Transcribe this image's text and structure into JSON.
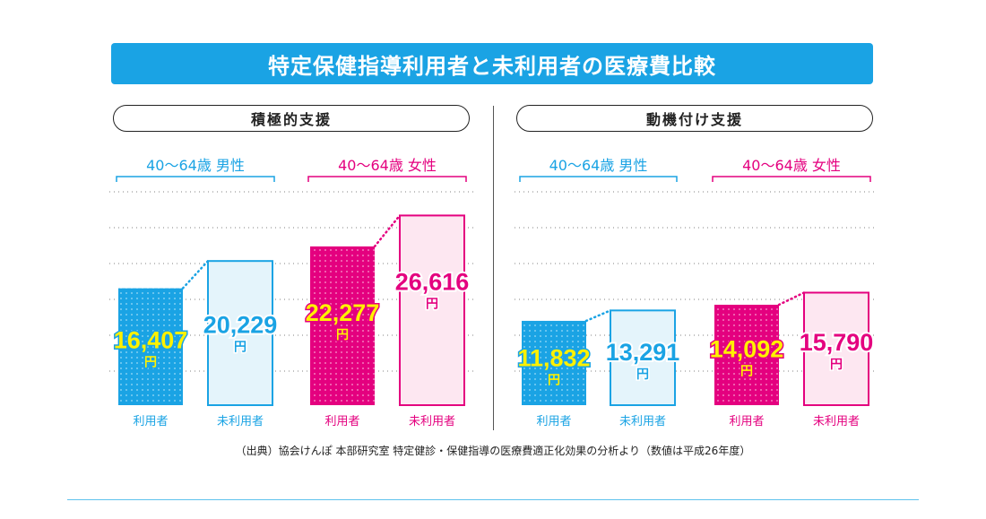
{
  "title": "特定保健指導利用者と未利用者の医療費比較",
  "source": "（出典）協会けんぽ 本部研究室 特定健診・保健指導の医療費適正化効果の分析より（数値は平成26年度）",
  "colors": {
    "banner": "#1aa3e4",
    "male": "#1aa3e4",
    "male_light": "#e4f4fb",
    "female": "#e4007f",
    "female_light": "#fde7f1",
    "highlight": "#fff100"
  },
  "chart_data": [
    {
      "type": "bar",
      "title": "積極的支援",
      "unit": "円",
      "groups": [
        {
          "name": "40～64歳 男性",
          "categories": [
            "利用者",
            "未利用者"
          ],
          "values": [
            16407,
            20229
          ],
          "labels": [
            "16,407",
            "20,229"
          ]
        },
        {
          "name": "40～64歳 女性",
          "categories": [
            "利用者",
            "未利用者"
          ],
          "values": [
            22277,
            26616
          ],
          "labels": [
            "22,277",
            "26,616"
          ]
        }
      ]
    },
    {
      "type": "bar",
      "title": "動機付け支援",
      "unit": "円",
      "groups": [
        {
          "name": "40～64歳 男性",
          "categories": [
            "利用者",
            "未利用者"
          ],
          "values": [
            11832,
            13291
          ],
          "labels": [
            "11,832",
            "13,291"
          ]
        },
        {
          "name": "40～64歳 女性",
          "categories": [
            "利用者",
            "未利用者"
          ],
          "values": [
            14092,
            15790
          ],
          "labels": [
            "14,092",
            "15,790"
          ]
        }
      ]
    }
  ]
}
